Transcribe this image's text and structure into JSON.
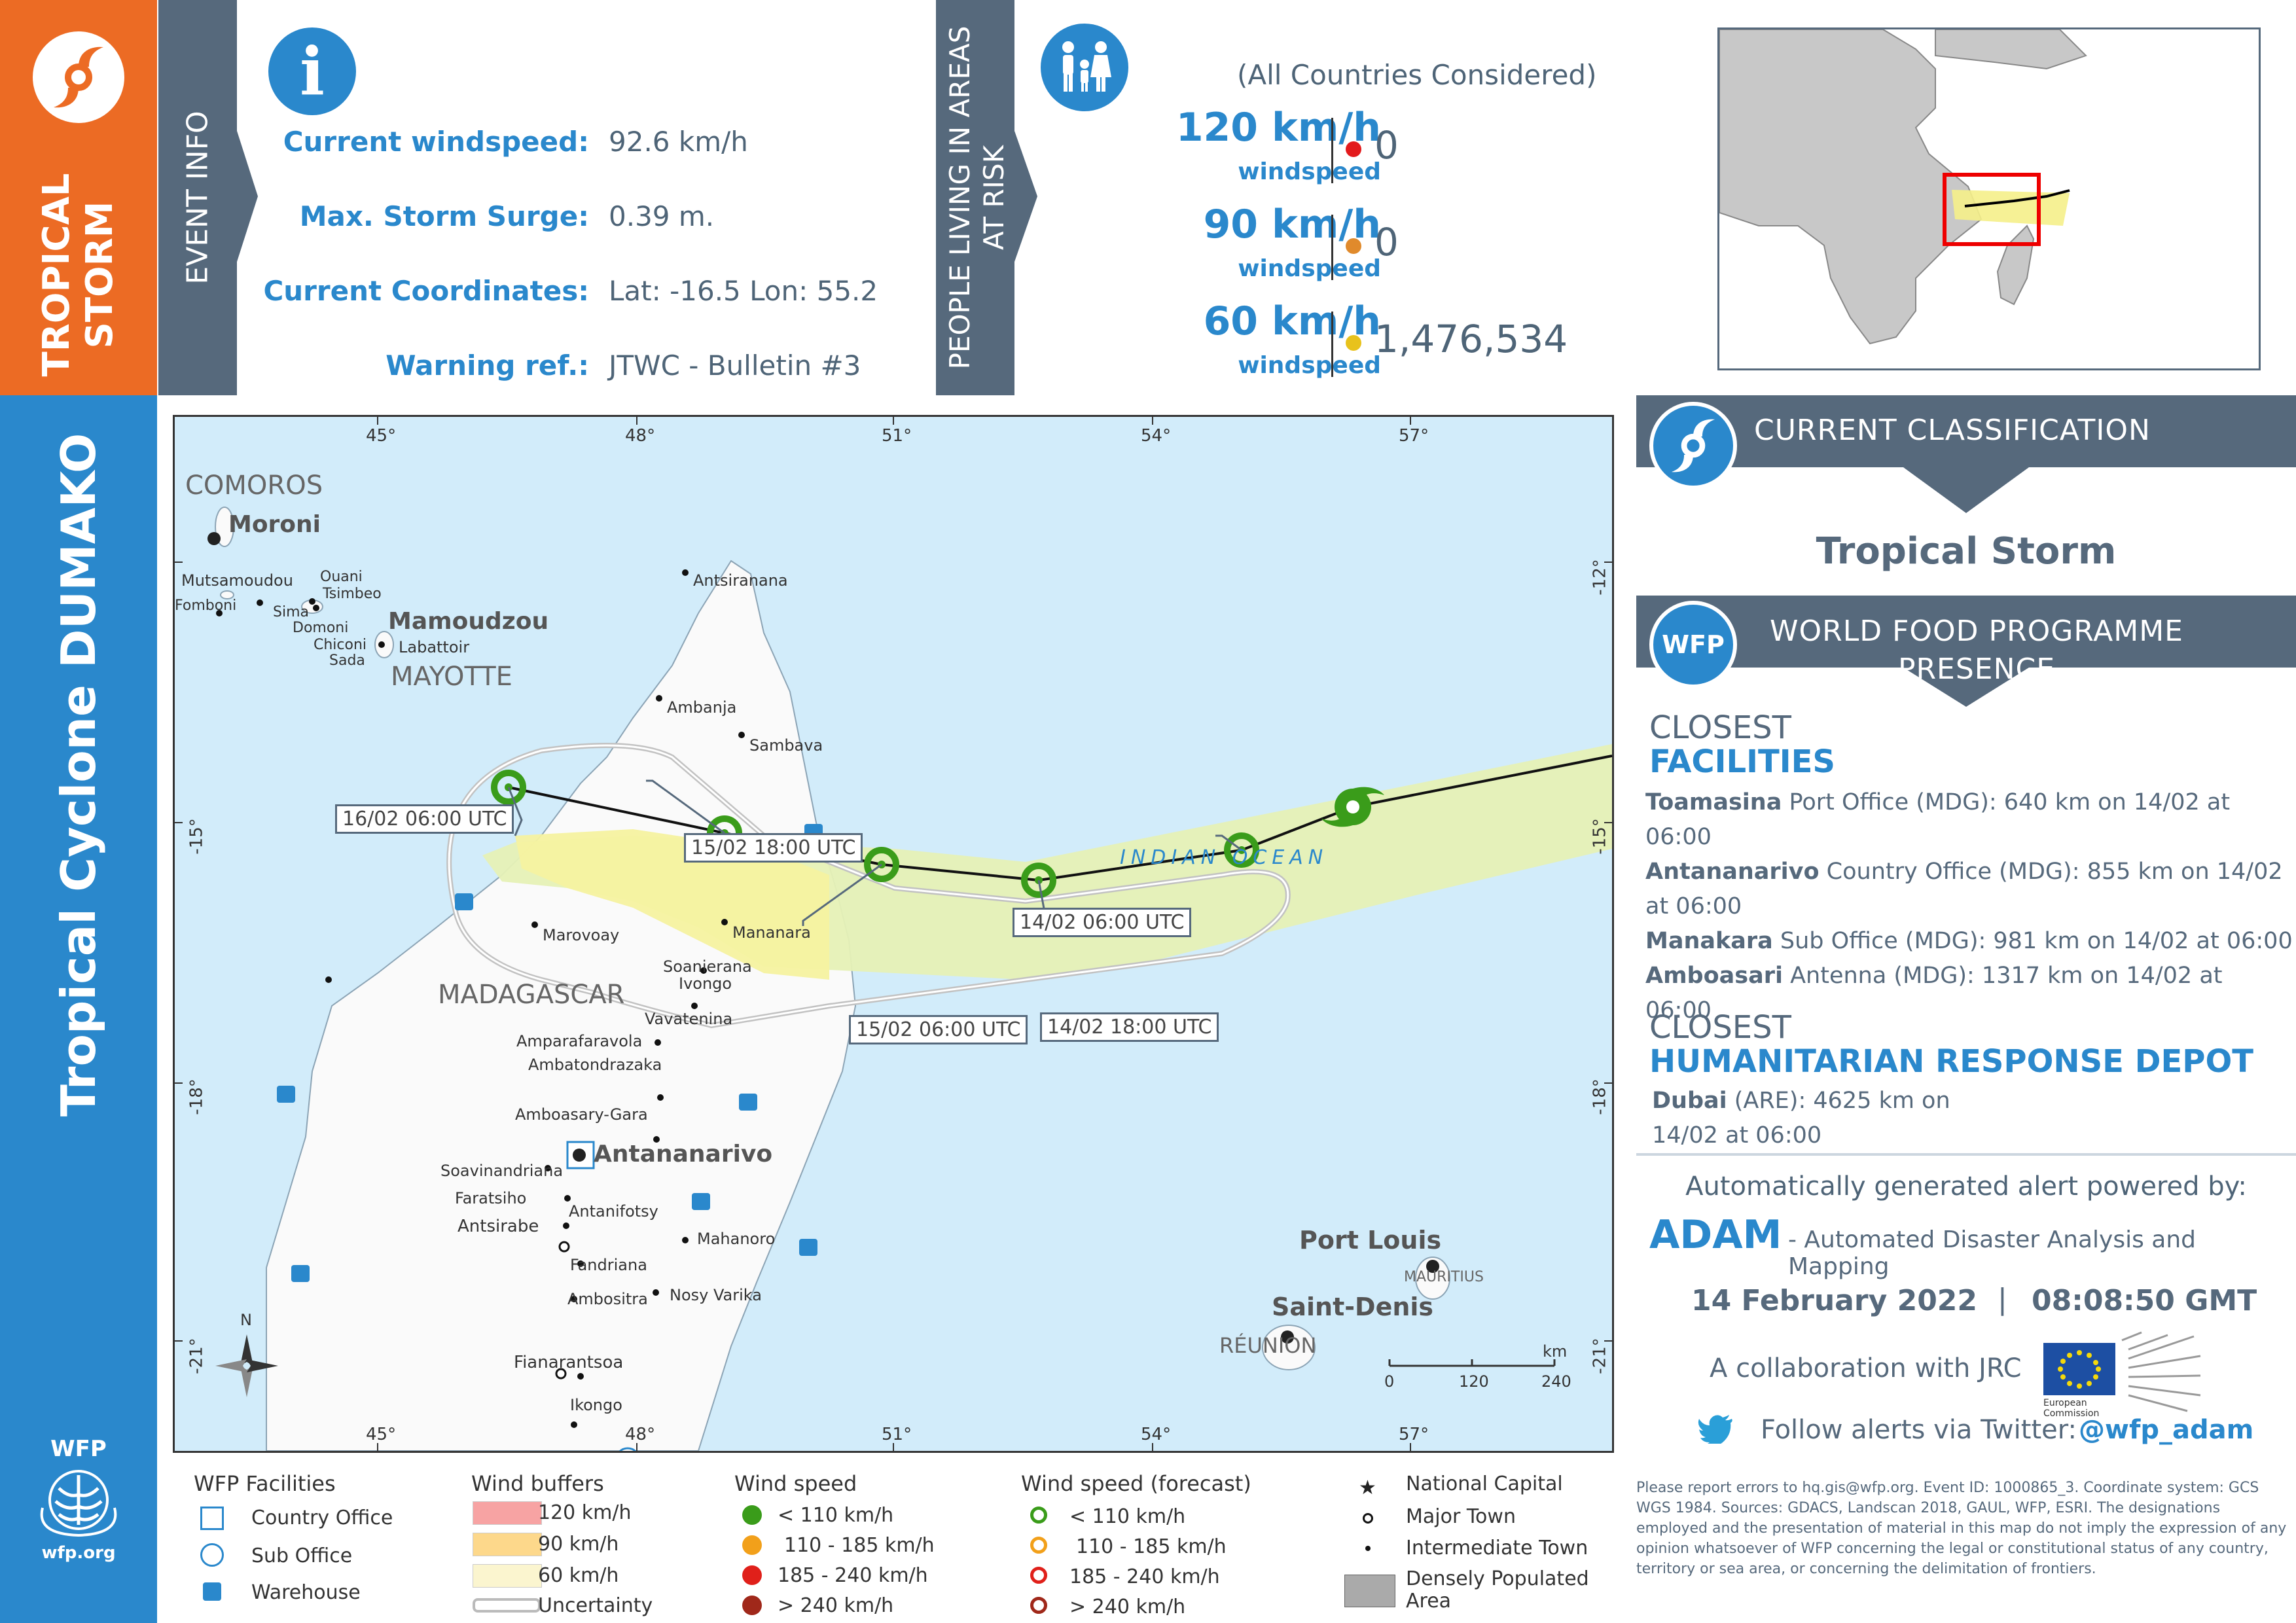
{
  "sidebar": {
    "event_type": "TROPICAL\nSTORM",
    "event_type_line1": "TROPICAL",
    "event_type_line2": "STORM",
    "cyclone_name": "Tropical Cyclone DUMAKO",
    "wfp_logo_text": "WFP",
    "wfp_url": "wfp.org"
  },
  "event_info": {
    "band_label": "EVENT INFO",
    "rows": [
      {
        "label": "Current windspeed:",
        "value": "92.6 km/h"
      },
      {
        "label": "Max. Storm Surge:",
        "value": "0.39 m."
      },
      {
        "label": "Current Coordinates:",
        "value": "Lat: -16.5 Lon: 55.2"
      },
      {
        "label": "Warning ref.:",
        "value": "JTWC - Bulletin #3"
      }
    ]
  },
  "people_at_risk": {
    "band_label_line1": "PEOPLE LIVING IN AREAS",
    "band_label_line2": "AT RISK",
    "note": "(All Countries Considered)",
    "rows": [
      {
        "speed": "120 km/h",
        "sub": "windspeed",
        "count": "0",
        "color": "#e31a1c"
      },
      {
        "speed": "90 km/h",
        "sub": "windspeed",
        "count": "0",
        "color": "#e08a2c"
      },
      {
        "speed": "60 km/h",
        "sub": "windspeed",
        "count": "1,476,534",
        "color": "#e8c21c"
      }
    ]
  },
  "map": {
    "lon_ticks": [
      "45°",
      "48°",
      "51°",
      "54°",
      "57°"
    ],
    "lat_ticks": [
      "-12°",
      "-15°",
      "-18°",
      "-21°"
    ],
    "labels": {
      "comoros": "COMOROS",
      "moroni": "Moroni",
      "mutsamudu": "Mutsamoudou",
      "ouani": "Ouani",
      "tsimbeo": "Tsimbeo",
      "fomboni": "Fomboni",
      "sima": "Sima",
      "domoni": "Domoni",
      "mamoudzou": "Mamoudzou",
      "labattoir": "Labattoir",
      "chiconi": "Chiconi",
      "sada": "Sada",
      "mayotte": "MAYOTTE",
      "antsiranana": "Antsiranana",
      "ambanja": "Ambanja",
      "sambava": "Sambava",
      "marovoay": "Marovoay",
      "mananara": "Mananara",
      "soanierana": "Soanierana",
      "ivongo": "Ivongo",
      "madagascar": "MADAGASCAR",
      "vavatenina": "Vavatenina",
      "amparafaravola": "Amparafaravola",
      "ambatondrazaka": "Ambatondrazaka",
      "amboasary_gara": "Amboasary-Gara",
      "antananarivo": "Antananarivo",
      "soavinandriana": "Soavinandriana",
      "faratsiho": "Faratsiho",
      "antanifotsy": "Antanifotsy",
      "antsirabe": "Antsirabe",
      "mahanoro": "Mahanoro",
      "fandriana": "Fandriana",
      "ambositra": "Ambositra",
      "nosy_varika": "Nosy Varika",
      "fianarantsoa": "Fianarantsoa",
      "ikongo": "Ikongo",
      "indian_ocean": "INDIAN OCEAN",
      "port_louis": "Port Louis",
      "mauritius": "MAURITIUS",
      "saint_denis": "Saint-Denis",
      "reunion": "RÉUNION"
    },
    "track_labels": {
      "t1": "16/02 06:00 UTC",
      "t2": "15/02 18:00 UTC",
      "t3": "14/02 06:00 UTC",
      "t4": "15/02 06:00 UTC",
      "t5": "14/02 18:00 UTC"
    },
    "scale": {
      "unit": "km",
      "ticks": [
        "0",
        "120",
        "240"
      ]
    },
    "north": "N"
  },
  "classification": {
    "header": "CURRENT CLASSIFICATION",
    "value": "Tropical Storm"
  },
  "wfp_presence": {
    "header_line1": "WORLD FOOD PROGRAMME",
    "header_line2": "PRESENCE",
    "badge": "WFP",
    "closest": "CLOSEST",
    "facilities": "FACILITIES",
    "facility_rows": [
      {
        "name": "Toamasina",
        "rest": " Port Office (MDG): 640 km on 14/02 at"
      },
      {
        "name": "",
        "rest": "06:00"
      },
      {
        "name": "Antananarivo",
        "rest": " Country Office (MDG): 855 km on 14/02"
      },
      {
        "name": "",
        "rest": "at 06:00"
      },
      {
        "name": "Manakara",
        "rest": " Sub Office (MDG): 981 km on 14/02 at 06:00"
      },
      {
        "name": "Amboasari",
        "rest": " Antenna (MDG): 1317 km on 14/02 at 06:00"
      }
    ],
    "closest2": "CLOSEST",
    "depot_header": "HUMANITARIAN RESPONSE DEPOT",
    "depot_name": "Dubai",
    "depot_rest": " (ARE): 4625 km on",
    "depot_line2": "14/02 at 06:00"
  },
  "adam": {
    "powered": "Automatically generated alert powered by:",
    "name": "ADAM",
    "desc": "- Automated Disaster Analysis and Mapping",
    "date": "14 February 2022",
    "sep": "|",
    "time": "08:08:50 GMT",
    "collab": "A collaboration with JRC",
    "ec_label": "European Commission",
    "twitter_text": "Follow alerts via Twitter:",
    "twitter_handle": "@wfp_adam"
  },
  "legend": {
    "facilities": {
      "title": "WFP Facilities",
      "items": [
        "Country Office",
        "Sub Office",
        "Warehouse"
      ]
    },
    "buffers": {
      "title": "Wind buffers",
      "items": [
        "120 km/h",
        "90 km/h",
        "60 km/h",
        "Uncertainty"
      ],
      "colors": [
        "#f7a3a3",
        "#fdd88b",
        "#fbf5cf"
      ]
    },
    "wind": {
      "title": "Wind speed",
      "items": [
        "< 110 km/h",
        "110 - 185 km/h",
        "185 - 240 km/h",
        "> 240 km/h"
      ],
      "colors": [
        "#3a9c1a",
        "#f2a01a",
        "#e0201a",
        "#a0281a"
      ]
    },
    "wind_forecast": {
      "title": "Wind speed (forecast)",
      "items": [
        "< 110 km/h",
        "110 - 185 km/h",
        "185 - 240 km/h",
        "> 240 km/h"
      ]
    },
    "places": {
      "items": [
        "National Capital",
        "Major Town",
        "Intermediate Town"
      ],
      "populated_line1": "Densely Populated",
      "populated_line2": "Area"
    }
  },
  "disclaimer": "Please report errors to hq.gis@wfp.org. Event ID: 1000865_3. Coordinate system: GCS WGS 1984. Sources: GDACS, Landscan 2018, GAUL, WFP, ESRI. The designations employed and the presentation of material in this map do not imply the expression of any opinion whatsoever of WFP concerning the legal or constitutional status of any country, territory or sea area, or concerning the delimitation of frontiers.",
  "colors": {
    "orange": "#ec6b24",
    "blue": "#2a88cc",
    "slate": "#56697c",
    "ocean": "#d2ecfa"
  }
}
